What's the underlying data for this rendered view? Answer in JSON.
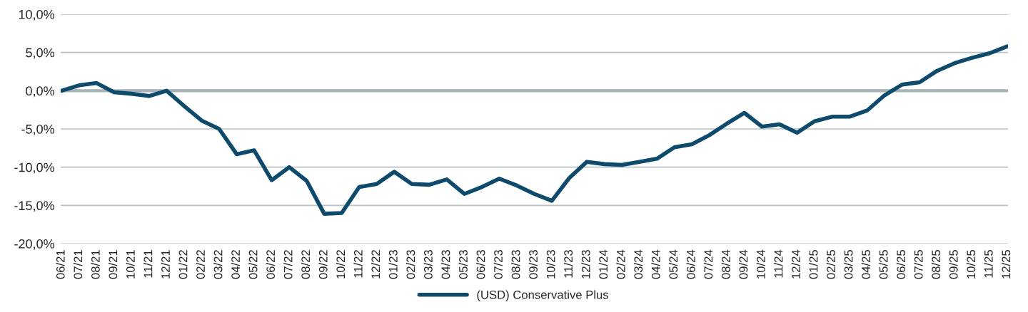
{
  "chart_data": {
    "type": "line",
    "categories": [
      "06/21",
      "07/21",
      "08/21",
      "09/21",
      "10/21",
      "11/21",
      "12/21",
      "01/22",
      "02/22",
      "03/22",
      "04/22",
      "05/22",
      "06/22",
      "07/22",
      "08/22",
      "09/22",
      "10/22",
      "11/22",
      "12/22",
      "01/23",
      "02/23",
      "03/23",
      "04/23",
      "05/23",
      "06/23",
      "07/23",
      "08/23",
      "09/23",
      "10/23",
      "11/23",
      "12/23",
      "01/24",
      "02/24",
      "03/24",
      "04/24",
      "05/24",
      "06/24",
      "07/24",
      "08/24",
      "09/24",
      "10/24",
      "11/24",
      "12/24",
      "01/25",
      "02/25",
      "03/25",
      "04/25",
      "05/25",
      "06/25",
      "07/25",
      "08/25",
      "09/25",
      "10/25",
      "11/25",
      "12/25"
    ],
    "series": [
      {
        "name": "(USD) Conservative Plus",
        "color": "#0d4a6b",
        "values": [
          0.0,
          0.7,
          1.0,
          -0.2,
          -0.4,
          -0.7,
          0.0,
          -2.0,
          -3.9,
          -5.0,
          -8.3,
          -7.8,
          -11.7,
          -10.0,
          -11.8,
          -16.1,
          -16.0,
          -12.6,
          -12.2,
          -10.6,
          -12.2,
          -12.3,
          -11.6,
          -13.5,
          -12.6,
          -11.5,
          -12.4,
          -13.5,
          -14.4,
          -11.4,
          -9.3,
          -9.6,
          -9.7,
          -9.3,
          -8.9,
          -7.4,
          -7.0,
          -5.8,
          -4.3,
          -2.9,
          -4.7,
          -4.4,
          -5.5,
          -4.0,
          -3.4,
          -3.4,
          -2.6,
          -0.6,
          0.8,
          1.1,
          2.6,
          3.6,
          4.3,
          4.9,
          5.8
        ]
      }
    ],
    "ylim": [
      -20,
      10
    ],
    "yticks": [
      {
        "value": -20,
        "label": "-20,0%"
      },
      {
        "value": -15,
        "label": "-15,0%"
      },
      {
        "value": -10,
        "label": "-10,0%"
      },
      {
        "value": -5,
        "label": "-5,0%"
      },
      {
        "value": 0,
        "label": "0,0%"
      },
      {
        "value": 5,
        "label": "5,0%"
      },
      {
        "value": 10,
        "label": "10,0%"
      }
    ],
    "ref_lines": [
      {
        "axis": "y",
        "value": 0,
        "color": "#a6b4b8"
      }
    ],
    "grid": "y",
    "legend": "bottom",
    "marker": "none",
    "line_style": "solid"
  }
}
